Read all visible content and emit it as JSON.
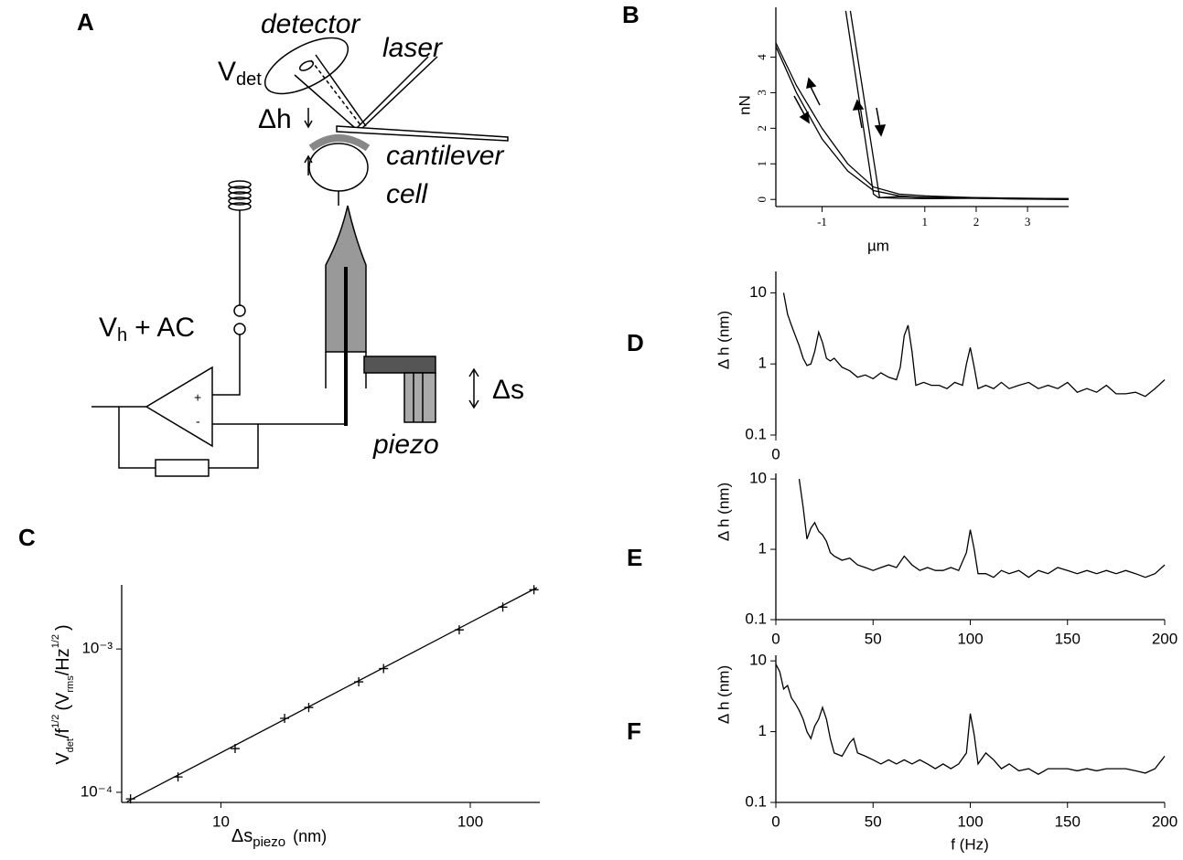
{
  "diagram": {
    "panel": "A",
    "labels": {
      "detector": "detector",
      "laser": "laser",
      "vdet": "V",
      "vdet_sub": "det",
      "dh": "Δh",
      "cantilever": "cantilever",
      "cell": "cell",
      "vh": "V",
      "vh_sub": "h",
      "ac": "+ AC",
      "ds": "Δs",
      "piezo": "piezo",
      "plus": "+",
      "minus": "-"
    }
  },
  "chart_data": [
    {
      "type": "line",
      "panel": "B",
      "xlabel": "µm",
      "ylabel": "nN",
      "xlim": [
        -1.9,
        3.8
      ],
      "ylim": [
        -0.2,
        5.4
      ],
      "xticks": [
        -1,
        1,
        2,
        3
      ],
      "yticks": [
        0,
        1,
        2,
        3,
        4
      ],
      "series": [
        {
          "color": "#000000",
          "x": [
            -1.9,
            -1.5,
            -1.0,
            -0.5,
            0,
            0.5,
            1,
            2,
            3,
            3.8
          ],
          "values": [
            4.4,
            3.2,
            2.0,
            1.0,
            0.35,
            0.15,
            0.1,
            0.05,
            0.03,
            0.02
          ]
        },
        {
          "color": "#000000",
          "x": [
            -1.9,
            -1.5,
            -1.0,
            -0.5,
            0,
            0.5,
            1,
            2,
            3,
            3.8
          ],
          "values": [
            4.3,
            3.0,
            1.7,
            0.8,
            0.25,
            0.1,
            0.05,
            0.03,
            0.01,
            0.0
          ]
        },
        {
          "color": "#000000",
          "x": [
            -0.54,
            0,
            0.1,
            0.5,
            1,
            2,
            3,
            3.8
          ],
          "values": [
            5.3,
            0.15,
            0.05,
            0.08,
            0.06,
            0.05,
            0.03,
            0.02
          ]
        },
        {
          "color": "#000000",
          "x": [
            -0.45,
            0.12,
            0.5,
            1,
            2,
            3,
            3.8
          ],
          "values": [
            5.3,
            0.05,
            0.03,
            0.02,
            0.03,
            0.01,
            0.0
          ]
        }
      ]
    },
    {
      "type": "scatter",
      "panel": "C",
      "xlog": true,
      "ylog": true,
      "xlabel": [
        "Δs",
        "piezo",
        "(nm)"
      ],
      "ylabel": [
        "V",
        "det",
        "/f",
        "1/2",
        "(V",
        "rms",
        "/Hz",
        "1/2",
        ")"
      ],
      "xlim": [
        4,
        190
      ],
      "ylim": [
        8.5e-05,
        0.0028
      ],
      "xticks": [
        10,
        100
      ],
      "yticks": [
        {
          "value": 0.0001,
          "label": "10⁻⁴"
        },
        {
          "value": 0.001,
          "label": "10⁻³"
        }
      ],
      "series": [
        {
          "mode": "marker",
          "color": "#000000",
          "x": [
            4.34,
            6.73,
            11.4,
            18.0,
            22.5,
            35.7,
            44.9,
            90.3,
            135,
            180
          ],
          "values": [
            9e-05,
            0.000128,
            0.000202,
            0.000328,
            0.000391,
            0.00059,
            0.00073,
            0.00136,
            0.00196,
            0.00259
          ]
        },
        {
          "mode": "line",
          "color": "#000000",
          "x": [
            4.2,
            185
          ],
          "values": [
            8.6e-05,
            0.00268
          ]
        }
      ]
    },
    {
      "type": "line",
      "panel": "D",
      "ylog": true,
      "x_axis_line": false,
      "ylabel": "Δ h (nm)",
      "xlim": [
        0,
        200
      ],
      "ylim": [
        0.1,
        20
      ],
      "xticks": [
        0
      ],
      "yticks": [
        0.1,
        1,
        10
      ],
      "series": [
        {
          "color": "#000000",
          "x": [
            4,
            6,
            8,
            10,
            12,
            14,
            16,
            18,
            20,
            22,
            24,
            26,
            28,
            30,
            34,
            38,
            42,
            46,
            50,
            54,
            58,
            62,
            64,
            66,
            68,
            70,
            72,
            76,
            80,
            84,
            88,
            92,
            96,
            98,
            100,
            102,
            104,
            108,
            112,
            116,
            120,
            125,
            130,
            135,
            140,
            145,
            150,
            155,
            160,
            165,
            170,
            175,
            180,
            185,
            190,
            195,
            200
          ],
          "values": [
            10,
            5,
            3.5,
            2.5,
            1.8,
            1.2,
            0.95,
            1.0,
            1.5,
            2.8,
            2.0,
            1.2,
            1.1,
            1.2,
            0.9,
            0.8,
            0.65,
            0.7,
            0.62,
            0.75,
            0.65,
            0.6,
            0.9,
            2.5,
            3.5,
            1.5,
            0.5,
            0.55,
            0.5,
            0.5,
            0.45,
            0.55,
            0.5,
            1.0,
            1.7,
            0.9,
            0.45,
            0.5,
            0.45,
            0.55,
            0.45,
            0.5,
            0.55,
            0.45,
            0.5,
            0.45,
            0.55,
            0.4,
            0.45,
            0.4,
            0.5,
            0.38,
            0.38,
            0.4,
            0.35,
            0.45,
            0.6
          ]
        }
      ]
    },
    {
      "type": "line",
      "panel": "E",
      "ylog": true,
      "x_axis_line": true,
      "ylabel": "Δ h (nm)",
      "xlim": [
        0,
        200
      ],
      "ylim": [
        0.1,
        12
      ],
      "xticks": [
        0,
        50,
        100,
        150,
        200
      ],
      "yticks": [
        0.1,
        1,
        10
      ],
      "series": [
        {
          "color": "#000000",
          "x": [
            12,
            14,
            16,
            18,
            20,
            22,
            24,
            26,
            28,
            30,
            34,
            38,
            42,
            46,
            50,
            54,
            58,
            62,
            66,
            70,
            74,
            78,
            82,
            86,
            90,
            94,
            98,
            100,
            102,
            104,
            108,
            112,
            116,
            120,
            125,
            130,
            135,
            140,
            145,
            150,
            155,
            160,
            165,
            170,
            175,
            180,
            185,
            190,
            195,
            200
          ],
          "values": [
            10,
            4,
            1.4,
            2.0,
            2.4,
            1.8,
            1.6,
            1.3,
            0.9,
            0.8,
            0.7,
            0.75,
            0.6,
            0.55,
            0.5,
            0.55,
            0.6,
            0.55,
            0.8,
            0.6,
            0.5,
            0.55,
            0.5,
            0.5,
            0.55,
            0.5,
            0.9,
            1.9,
            1.0,
            0.45,
            0.45,
            0.4,
            0.5,
            0.45,
            0.5,
            0.4,
            0.5,
            0.45,
            0.55,
            0.5,
            0.45,
            0.5,
            0.45,
            0.5,
            0.45,
            0.5,
            0.45,
            0.4,
            0.45,
            0.6
          ]
        }
      ]
    },
    {
      "type": "line",
      "panel": "F",
      "ylog": true,
      "x_axis_line": true,
      "xlabel": "f (Hz)",
      "ylabel": "Δ h (nm)",
      "xlim": [
        0,
        200
      ],
      "ylim": [
        0.1,
        12
      ],
      "xticks": [
        0,
        50,
        100,
        150,
        200
      ],
      "yticks": [
        0.1,
        1,
        10
      ],
      "series": [
        {
          "color": "#000000",
          "x": [
            0,
            2,
            4,
            6,
            8,
            10,
            12,
            14,
            16,
            18,
            20,
            22,
            24,
            26,
            28,
            30,
            34,
            38,
            40,
            42,
            46,
            50,
            54,
            58,
            62,
            66,
            70,
            74,
            78,
            82,
            86,
            90,
            94,
            98,
            100,
            102,
            104,
            108,
            112,
            116,
            120,
            125,
            130,
            135,
            140,
            145,
            150,
            155,
            160,
            165,
            170,
            175,
            180,
            185,
            190,
            195,
            200
          ],
          "values": [
            9,
            7,
            4,
            4.5,
            3,
            2.5,
            2,
            1.5,
            1.0,
            0.8,
            1.2,
            1.5,
            2.2,
            1.5,
            0.8,
            0.5,
            0.45,
            0.7,
            0.8,
            0.5,
            0.45,
            0.4,
            0.35,
            0.4,
            0.35,
            0.4,
            0.35,
            0.4,
            0.35,
            0.3,
            0.35,
            0.3,
            0.35,
            0.5,
            1.8,
            0.9,
            0.35,
            0.5,
            0.4,
            0.3,
            0.35,
            0.28,
            0.3,
            0.25,
            0.3,
            0.3,
            0.3,
            0.28,
            0.3,
            0.28,
            0.3,
            0.3,
            0.3,
            0.28,
            0.26,
            0.3,
            0.45
          ]
        }
      ]
    }
  ]
}
